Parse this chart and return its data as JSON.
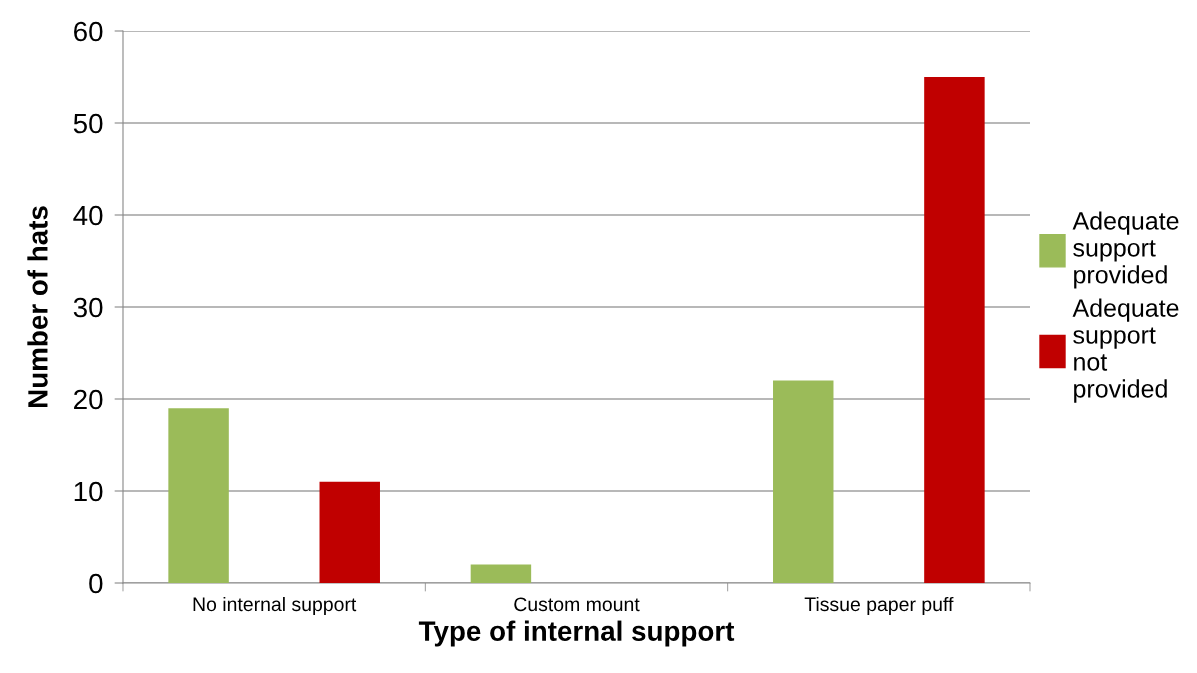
{
  "chart_data": {
    "type": "bar",
    "xlabel": "Type of internal support",
    "ylabel": "Number of hats",
    "categories": [
      "No internal support",
      "Custom mount",
      "Tissue paper puff"
    ],
    "series": [
      {
        "name": "Adequate support provided",
        "color": "#9bbb59",
        "values": [
          19,
          2,
          22
        ]
      },
      {
        "name": "Adequate support not provided",
        "color": "#c00000",
        "values": [
          11,
          0,
          55
        ]
      }
    ],
    "ylim": [
      0,
      60
    ],
    "yticks": [
      0,
      10,
      20,
      30,
      40,
      50,
      60
    ],
    "grid": "y",
    "legend": "right"
  }
}
